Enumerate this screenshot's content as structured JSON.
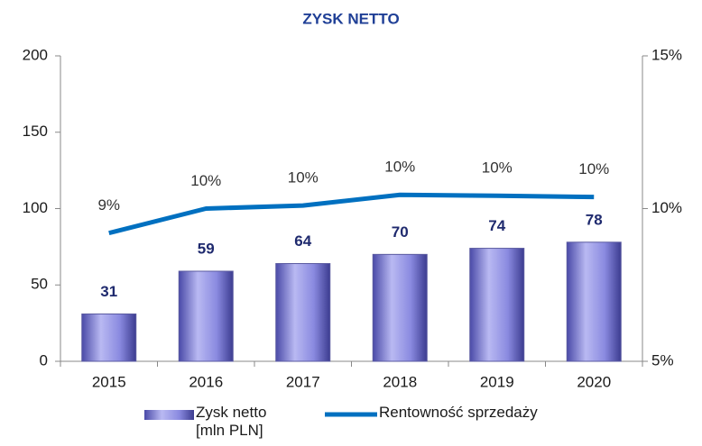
{
  "chart_data": {
    "type": "bar",
    "title": "ZYSK NETTO",
    "categories": [
      "2015",
      "2016",
      "2017",
      "2018",
      "2019",
      "2020"
    ],
    "series": [
      {
        "name": "Zysk netto\n[mln PLN]",
        "type": "bar",
        "color": "#6f6fd8",
        "values": [
          31,
          59,
          64,
          70,
          74,
          78
        ]
      },
      {
        "name": "Rentowność sprzedaży",
        "type": "line",
        "axis": "y2",
        "color": "#0070c0",
        "values": [
          9.2,
          10.0,
          10.1,
          10.45,
          10.42,
          10.38
        ],
        "value_labels": [
          "9%",
          "10%",
          "10%",
          "10%",
          "10%",
          "10%"
        ]
      }
    ],
    "ylim": [
      0,
      200
    ],
    "yticks": [
      0,
      50,
      100,
      150,
      200
    ],
    "y2lim": [
      5,
      15
    ],
    "y2ticks": [
      {
        "value": 5,
        "label": "5%"
      },
      {
        "value": 10,
        "label": "10%"
      },
      {
        "value": 15,
        "label": "15%"
      }
    ]
  }
}
